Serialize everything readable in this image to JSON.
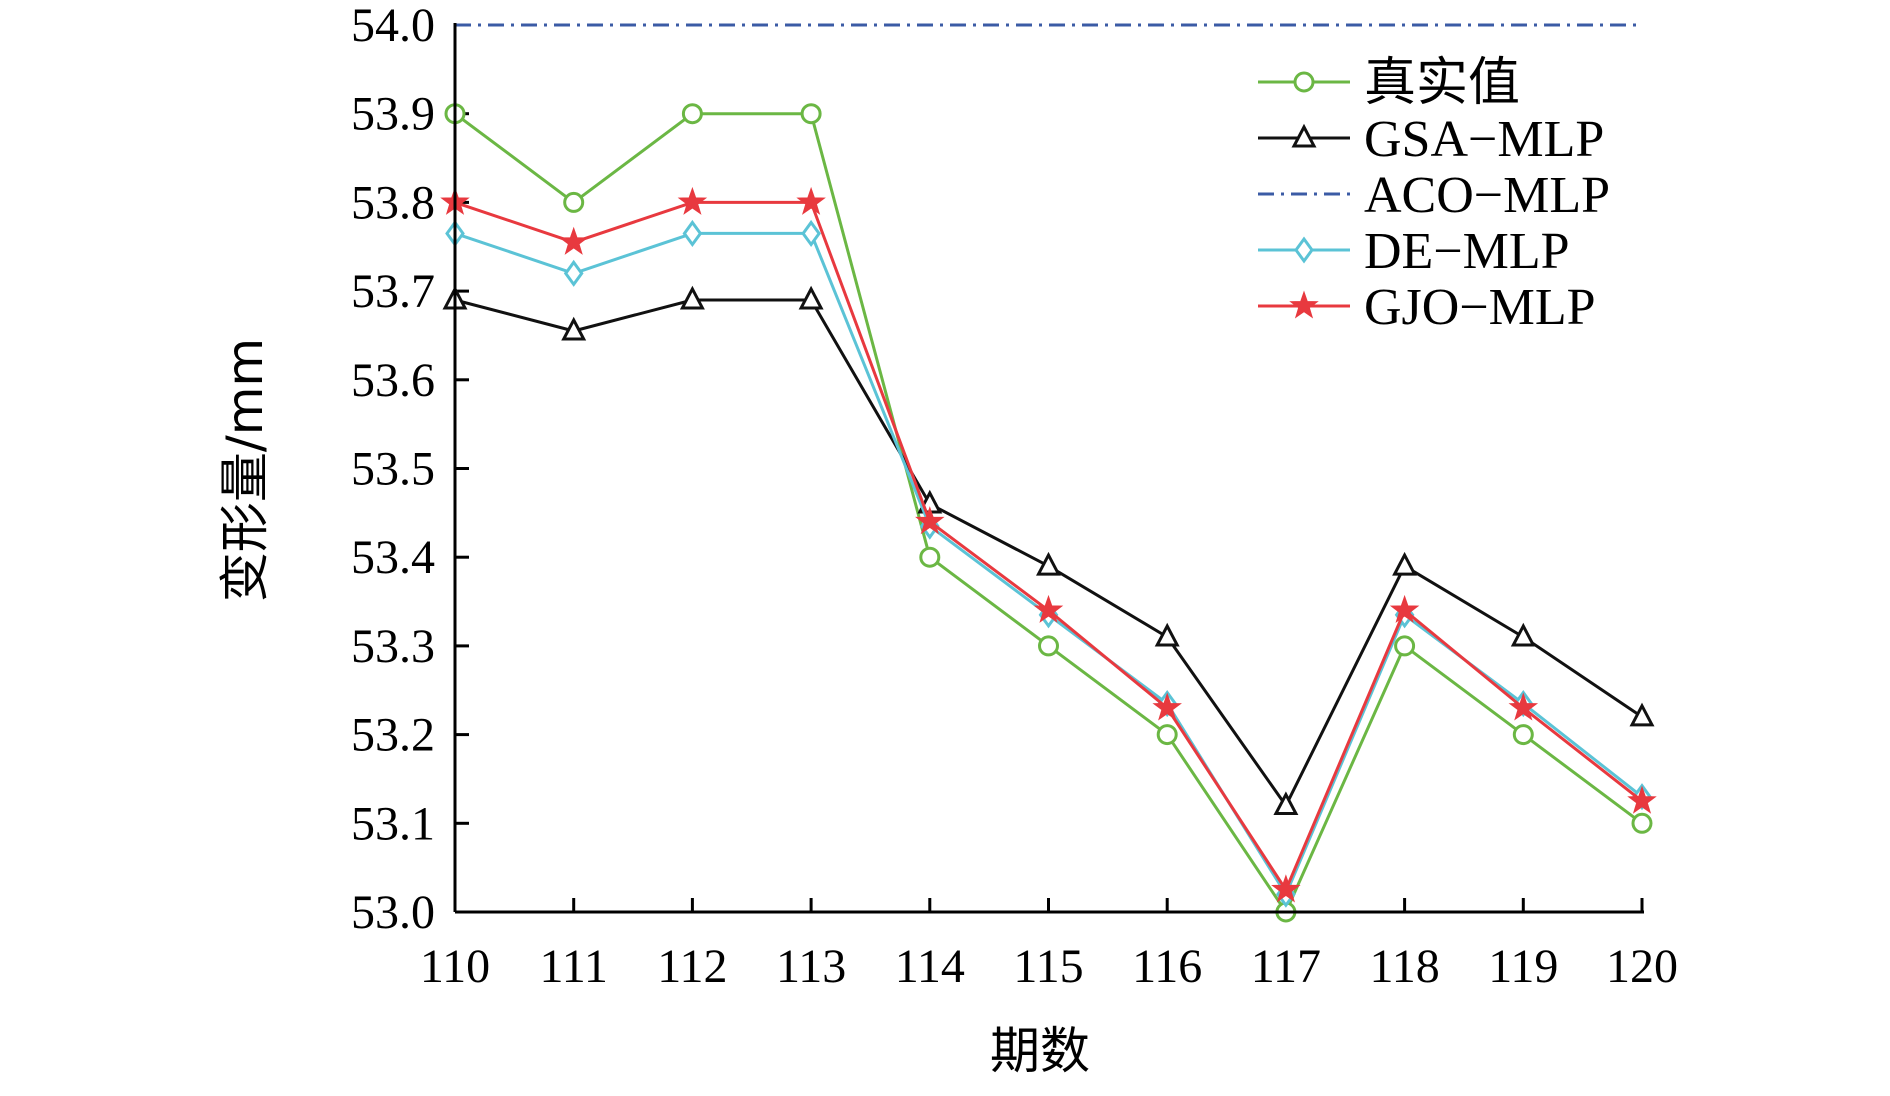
{
  "chart_data": {
    "type": "line",
    "title": "",
    "xlabel": "期数",
    "ylabel": "变形量/mm",
    "x": [
      110,
      111,
      112,
      113,
      114,
      115,
      116,
      117,
      118,
      119,
      120
    ],
    "x_tick_labels": [
      "110",
      "111",
      "112",
      "113",
      "114",
      "115",
      "116",
      "117",
      "118",
      "119",
      "120"
    ],
    "xlim": [
      110,
      120
    ],
    "y_ticks": [
      53.0,
      53.1,
      53.2,
      53.3,
      53.4,
      53.5,
      53.6,
      53.7,
      53.8,
      53.9,
      54.0
    ],
    "y_tick_labels": [
      "53.0",
      "53.1",
      "53.2",
      "53.3",
      "53.4",
      "53.5",
      "53.6",
      "53.7",
      "53.8",
      "53.9",
      "54.0"
    ],
    "ylim": [
      53.0,
      54.0
    ],
    "grid": false,
    "legend_position": "top-right",
    "series": [
      {
        "name": "真实值",
        "color": "#6bb744",
        "marker": "circle",
        "dash": "solid",
        "values": [
          53.9,
          53.8,
          53.9,
          53.9,
          53.4,
          53.3,
          53.2,
          53.0,
          53.3,
          53.2,
          53.1
        ]
      },
      {
        "name": "GSA−MLP",
        "color": "#111111",
        "marker": "triangle",
        "dash": "solid",
        "values": [
          53.69,
          53.655,
          53.69,
          53.69,
          53.46,
          53.39,
          53.31,
          53.12,
          53.39,
          53.31,
          53.22
        ]
      },
      {
        "name": "ACO−MLP",
        "color": "#3b5ba5",
        "marker": "none",
        "dash": "dashdot",
        "values": [
          54.0,
          54.0,
          54.0,
          54.0,
          54.0,
          54.0,
          54.0,
          54.0,
          54.0,
          54.0,
          54.0
        ]
      },
      {
        "name": "DE−MLP",
        "color": "#5bc3d6",
        "marker": "diamond",
        "dash": "solid",
        "values": [
          53.765,
          53.72,
          53.765,
          53.765,
          53.435,
          53.335,
          53.235,
          53.02,
          53.335,
          53.235,
          53.13
        ]
      },
      {
        "name": "GJO−MLP",
        "color": "#e8393f",
        "marker": "star",
        "dash": "solid",
        "values": [
          53.8,
          53.755,
          53.8,
          53.8,
          53.44,
          53.34,
          53.23,
          53.025,
          53.34,
          53.23,
          53.125
        ]
      }
    ]
  }
}
